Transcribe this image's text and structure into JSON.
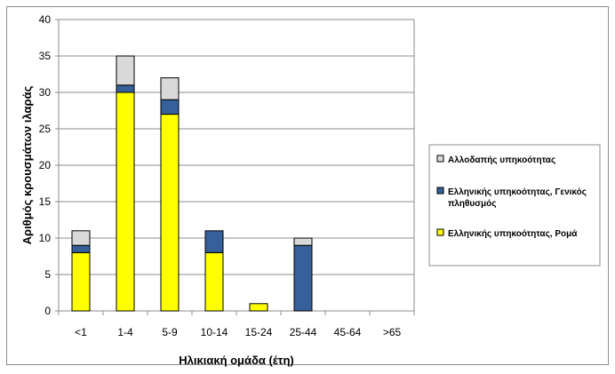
{
  "chart_data": {
    "type": "bar",
    "stacked": true,
    "categories": [
      "<1",
      "1-4",
      "5-9",
      "10-14",
      "15-24",
      "25-44",
      "45-64",
      ">65"
    ],
    "series": [
      {
        "name": "Ελληνικής υπηκοότητας, Ρομά",
        "color": "#ffff00",
        "values": [
          8,
          30,
          27,
          8,
          1,
          0,
          0,
          0
        ]
      },
      {
        "name": "Ελληνικής υπηκοότητας, Γενικός πληθυσμός",
        "color": "#36609a",
        "values": [
          1,
          1,
          2,
          3,
          0,
          9,
          0,
          0
        ]
      },
      {
        "name": "Αλλοδαπής υπηκοότητας",
        "color": "#d9d9d9",
        "values": [
          2,
          4,
          3,
          0,
          0,
          1,
          0,
          0
        ]
      }
    ],
    "legend": {
      "placement": "right",
      "entries": [
        {
          "lines": [
            "Αλλοδαπής υπηκοότητας"
          ],
          "color": "#d9d9d9"
        },
        {
          "lines": [
            "Ελληνικής υπηκοότητας, Γενικός",
            "πληθυσμός"
          ],
          "color": "#36609a"
        },
        {
          "lines": [
            "Ελληνικής υπηκοότητας, Ρομά"
          ],
          "color": "#ffff00"
        }
      ]
    },
    "xlabel": "Ηλικιακή ομάδα (έτη)",
    "ylabel": "Αριθμός κρουσμάτων ιλαράς",
    "ylim": [
      0,
      40
    ],
    "yticks": [
      0,
      5,
      10,
      15,
      20,
      25,
      30,
      35,
      40
    ],
    "grid": true
  }
}
